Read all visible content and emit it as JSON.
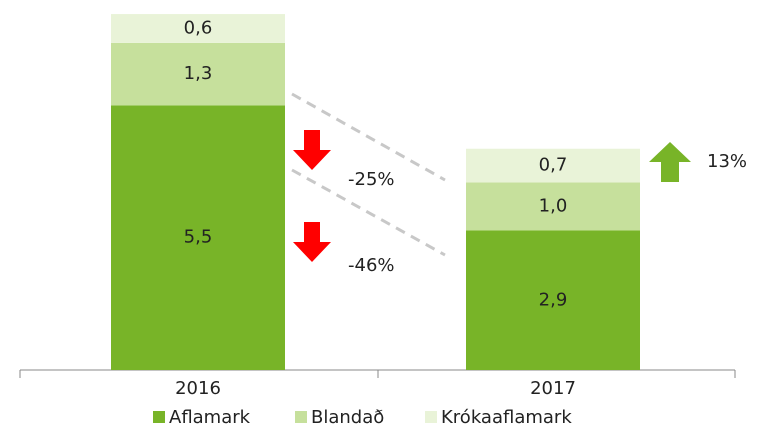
{
  "chart_data": {
    "type": "stacked_bar",
    "categories": [
      "2016",
      "2017"
    ],
    "series": [
      {
        "name": "Aflamark",
        "color": "#78b428",
        "values": [
          5.5,
          2.9
        ],
        "value_labels": [
          "5,5",
          "2,9"
        ]
      },
      {
        "name": "Blandað",
        "color": "#c6e09c",
        "values": [
          1.3,
          1.0
        ],
        "value_labels": [
          "1,3",
          "1,0"
        ]
      },
      {
        "name": "Krókaaflamark",
        "color": "#e9f3d8",
        "values": [
          0.6,
          0.7
        ],
        "value_labels": [
          "0,6",
          "0,7"
        ]
      }
    ],
    "annotations": [
      {
        "text": "-25%"
      },
      {
        "text": "-46%"
      },
      {
        "text": "13%"
      }
    ],
    "legend": "bottom"
  }
}
